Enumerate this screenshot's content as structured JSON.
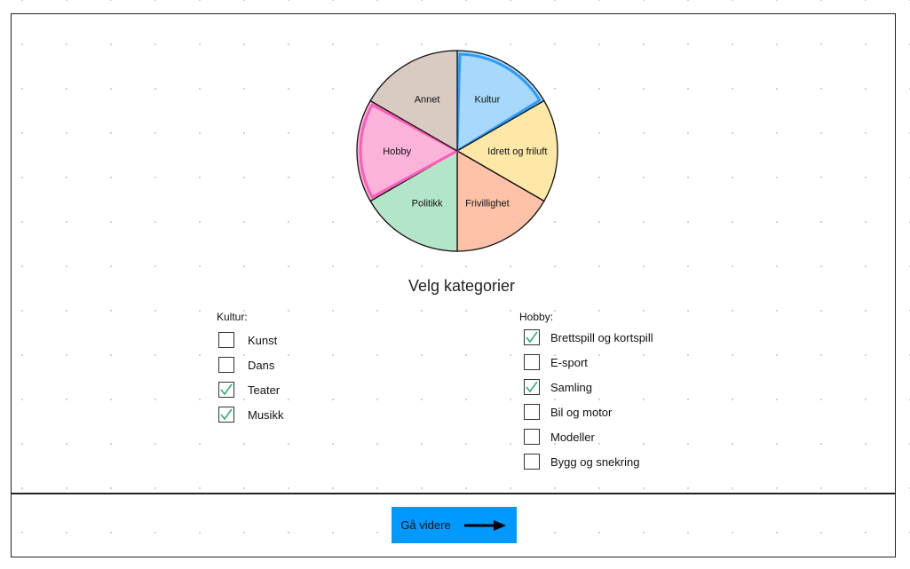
{
  "chart_data": {
    "type": "pie",
    "slices": [
      {
        "label": "Kultur",
        "value": 1,
        "color": "#a8d8fb",
        "highlight": "#2b9bff"
      },
      {
        "label": "Idrett og friluft",
        "value": 1,
        "color": "#fde8a8"
      },
      {
        "label": "Frivillighet",
        "value": 1,
        "color": "#fdc2a8"
      },
      {
        "label": "Politikk",
        "value": 1,
        "color": "#b3e6c9"
      },
      {
        "label": "Hobby",
        "value": 1,
        "color": "#fbb3da",
        "highlight": "#ff5cb8"
      },
      {
        "label": "Annet",
        "value": 1,
        "color": "#d9cbc2"
      }
    ]
  },
  "main": {
    "title": "Velg kategorier",
    "groups": [
      {
        "title": "Kultur:",
        "items": [
          {
            "label": "Kunst",
            "checked": false
          },
          {
            "label": "Dans",
            "checked": false
          },
          {
            "label": "Teater",
            "checked": true
          },
          {
            "label": "Musikk",
            "checked": true
          }
        ]
      },
      {
        "title": "Hobby:",
        "items": [
          {
            "label": "Brettspill og kortspill",
            "checked": true
          },
          {
            "label": "E-sport",
            "checked": false
          },
          {
            "label": "Samling",
            "checked": true
          },
          {
            "label": "Bil og motor",
            "checked": false
          },
          {
            "label": "Modeller",
            "checked": false
          },
          {
            "label": "Bygg og snekring",
            "checked": false
          }
        ]
      }
    ]
  },
  "footer": {
    "next_label": "Gå videre",
    "button_color": "#0099ff",
    "arrow_icon": "arrow-right-icon"
  },
  "colors": {
    "check": "#2db36a"
  }
}
